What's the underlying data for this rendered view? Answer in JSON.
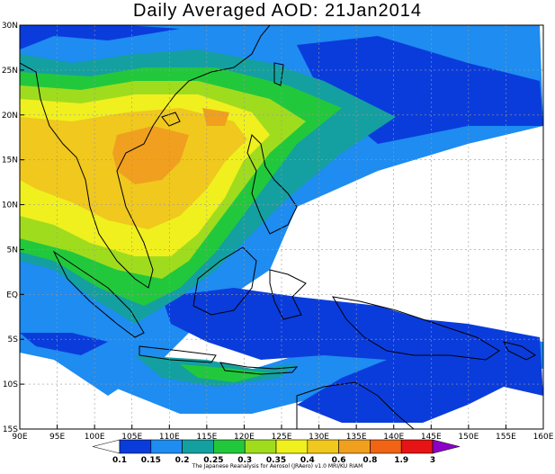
{
  "title": "Daily Averaged AOD: 21Jan2014",
  "credit": "The Japanese Reanalysis for Aerosol (JRAero) v1.0 MRI/KU RIAM",
  "map": {
    "lon_range": [
      90,
      160
    ],
    "lat_range": [
      -15,
      30
    ],
    "lon_ticks": [
      "90E",
      "95E",
      "100E",
      "105E",
      "110E",
      "115E",
      "120E",
      "125E",
      "130E",
      "135E",
      "140E",
      "145E",
      "150E",
      "155E",
      "160E"
    ],
    "lat_ticks": [
      "30N",
      "25N",
      "20N",
      "15N",
      "10N",
      "5N",
      "EQ",
      "5S",
      "10S",
      "15S"
    ],
    "grid": true
  },
  "colorbar": {
    "labels": [
      "0.1",
      "0.15",
      "0.2",
      "0.25",
      "0.3",
      "0.35",
      "0.4",
      "0.6",
      "0.8",
      "1.9",
      "3"
    ],
    "colors": [
      "#ffffff",
      "#0a3cdc",
      "#1e8cf0",
      "#14a0a0",
      "#22c83c",
      "#a0dc1e",
      "#f0f01e",
      "#f0c81e",
      "#f0a01e",
      "#f06414",
      "#e61414",
      "#8c00c8"
    ]
  }
}
